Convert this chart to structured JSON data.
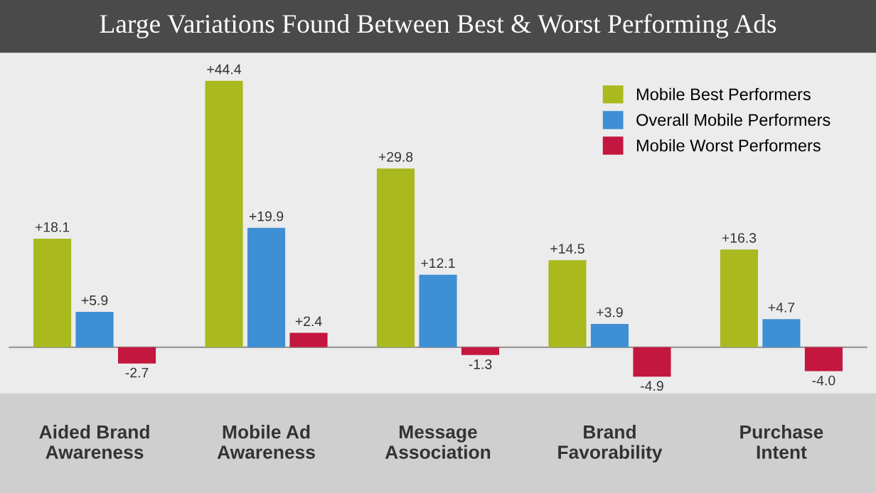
{
  "chart_data": {
    "type": "bar",
    "title": "Large Variations Found Between Best & Worst Performing Ads",
    "categories": [
      "Aided Brand\nAwareness",
      "Mobile Ad\nAwareness",
      "Message\nAssociation",
      "Brand\nFavorability",
      "Purchase\nIntent"
    ],
    "series": [
      {
        "name": "Mobile Best Performers",
        "color": "#a9b91e",
        "values": [
          18.1,
          44.4,
          29.8,
          14.5,
          16.3
        ],
        "value_labels": [
          "+18.1",
          "+44.4",
          "+29.8",
          "+14.5",
          "+16.3"
        ]
      },
      {
        "name": "Overall Mobile Performers",
        "color": "#3e8fd4",
        "values": [
          5.9,
          19.9,
          12.1,
          3.9,
          4.7
        ],
        "value_labels": [
          "+5.9",
          "+19.9",
          "+12.1",
          "+3.9",
          "+4.7"
        ]
      },
      {
        "name": "Mobile Worst Performers",
        "color": "#c4173f",
        "values": [
          -2.7,
          2.4,
          -1.3,
          -4.9,
          -4.0
        ],
        "value_labels": [
          "-2.7",
          "+2.4",
          "-1.3",
          "-4.9",
          "-4.0"
        ]
      }
    ],
    "legend": "top right"
  }
}
